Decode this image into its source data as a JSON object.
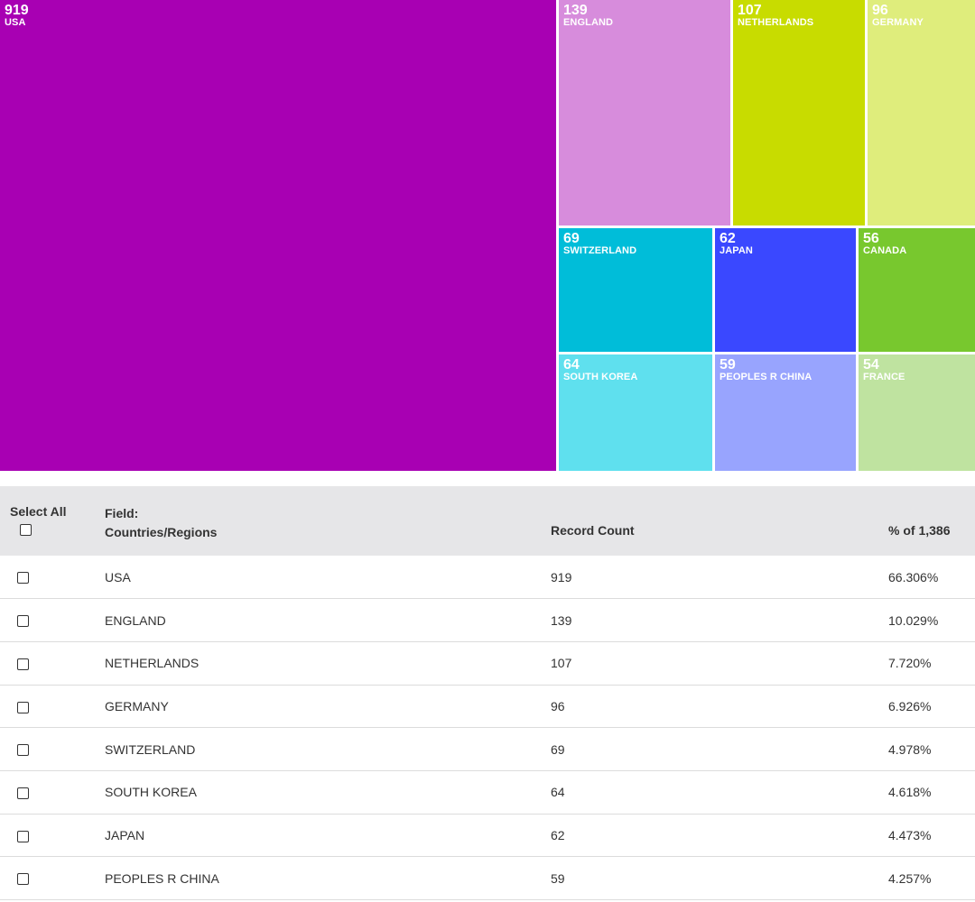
{
  "treemap": {
    "tiles": [
      {
        "key": "usa",
        "value": "919",
        "label": "USA",
        "color": "#a800b3"
      },
      {
        "key": "eng",
        "value": "139",
        "label": "ENGLAND",
        "color": "#d78cdc"
      },
      {
        "key": "net",
        "value": "107",
        "label": "NETHERLANDS",
        "color": "#c8dc00"
      },
      {
        "key": "ger",
        "value": "96",
        "label": "GERMANY",
        "color": "#dfed7c"
      },
      {
        "key": "swi",
        "value": "69",
        "label": "SWITZERLAND",
        "color": "#00bdd9"
      },
      {
        "key": "jap",
        "value": "62",
        "label": "JAPAN",
        "color": "#3a48ff"
      },
      {
        "key": "can",
        "value": "56",
        "label": "CANADA",
        "color": "#78c82e"
      },
      {
        "key": "kor",
        "value": "64",
        "label": "SOUTH KOREA",
        "color": "#5fe0ee"
      },
      {
        "key": "chn",
        "value": "59",
        "label": "PEOPLES R CHINA",
        "color": "#98a4fe"
      },
      {
        "key": "fra",
        "value": "54",
        "label": "FRANCE",
        "color": "#bfe3a0"
      }
    ]
  },
  "table": {
    "select_all_label": "Select All",
    "field_label_line1": "Field:",
    "field_label_line2": "Countries/Regions",
    "record_count_label": "Record Count",
    "percent_label": "% of 1,386",
    "rows": [
      {
        "country": "USA",
        "count": "919",
        "percent": "66.306%"
      },
      {
        "country": "ENGLAND",
        "count": "139",
        "percent": "10.029%"
      },
      {
        "country": "NETHERLANDS",
        "count": "107",
        "percent": "7.720%"
      },
      {
        "country": "GERMANY",
        "count": "96",
        "percent": "6.926%"
      },
      {
        "country": "SWITZERLAND",
        "count": "69",
        "percent": "4.978%"
      },
      {
        "country": "SOUTH KOREA",
        "count": "64",
        "percent": "4.618%"
      },
      {
        "country": "JAPAN",
        "count": "62",
        "percent": "4.473%"
      },
      {
        "country": "PEOPLES R CHINA",
        "count": "59",
        "percent": "4.257%"
      }
    ]
  }
}
